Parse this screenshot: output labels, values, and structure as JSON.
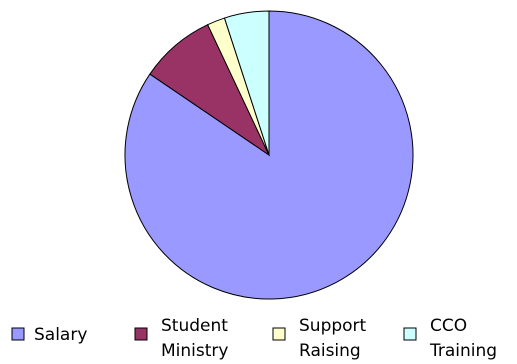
{
  "chart_data": {
    "type": "pie",
    "title": "",
    "legend_position": "bottom",
    "start_angle_deg": 0,
    "direction": "clockwise",
    "slices": [
      {
        "label_lines": [
          "Salary"
        ],
        "value": 84.5,
        "color": "#9999ff"
      },
      {
        "label_lines": [
          "Student",
          "Ministry"
        ],
        "value": 8.5,
        "color": "#993366"
      },
      {
        "label_lines": [
          "Support",
          "Raising"
        ],
        "value": 2.0,
        "color": "#ffffcc"
      },
      {
        "label_lines": [
          "CCO",
          "Training"
        ],
        "value": 5.0,
        "color": "#ccffff"
      }
    ]
  }
}
